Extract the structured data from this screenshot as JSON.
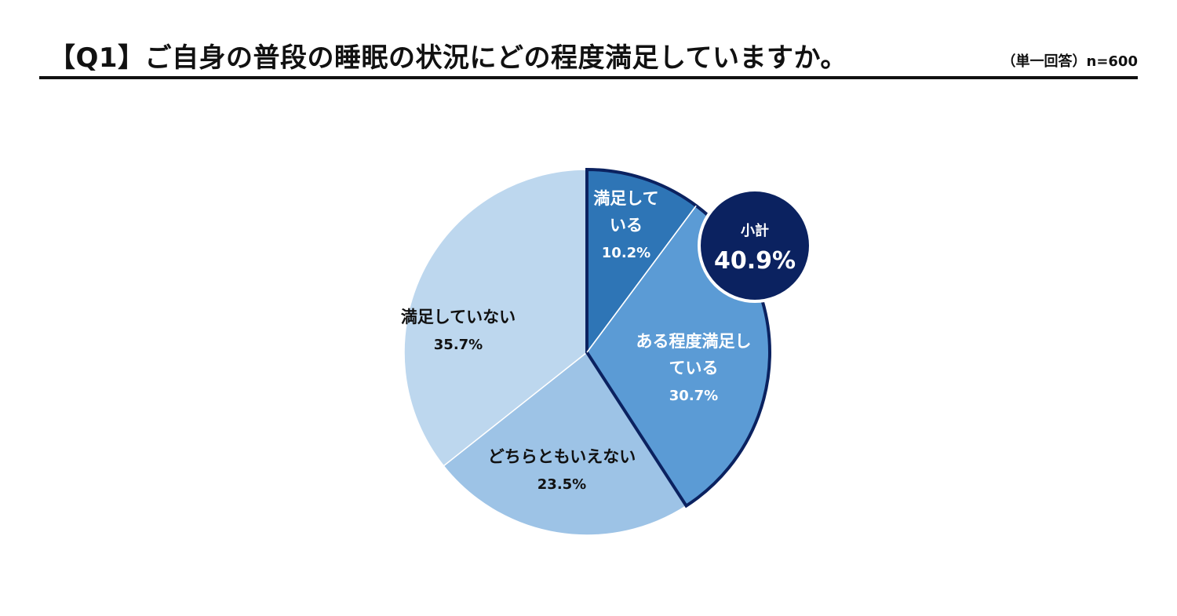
{
  "header": {
    "title": "【Q1】ご自身の普段の睡眠の状況にどの程度満足していますか。",
    "note": "（単一回答）n=600"
  },
  "chart_data": {
    "type": "pie",
    "title": "",
    "slices": [
      {
        "label_lines": [
          "満足して",
          "いる"
        ],
        "value": 10.2,
        "display": "10.2%",
        "color": "#2e75b6",
        "label_color": "#ffffff",
        "emphasized": true
      },
      {
        "label_lines": [
          "ある程度満足し",
          "ている"
        ],
        "value": 30.7,
        "display": "30.7%",
        "color": "#5b9bd5",
        "label_color": "#ffffff",
        "emphasized": true
      },
      {
        "label_lines": [
          "どちらともいえない"
        ],
        "value": 23.5,
        "display": "23.5%",
        "color": "#9dc3e6",
        "label_color": "#111111",
        "emphasized": false
      },
      {
        "label_lines": [
          "満足していない"
        ],
        "value": 35.7,
        "display": "35.7%",
        "color": "#bdd7ee",
        "label_color": "#111111",
        "emphasized": false
      }
    ],
    "subtotal": {
      "label": "小計",
      "value": "40.9%",
      "color": "#0b2260"
    },
    "outline_color": "#0b2260"
  }
}
